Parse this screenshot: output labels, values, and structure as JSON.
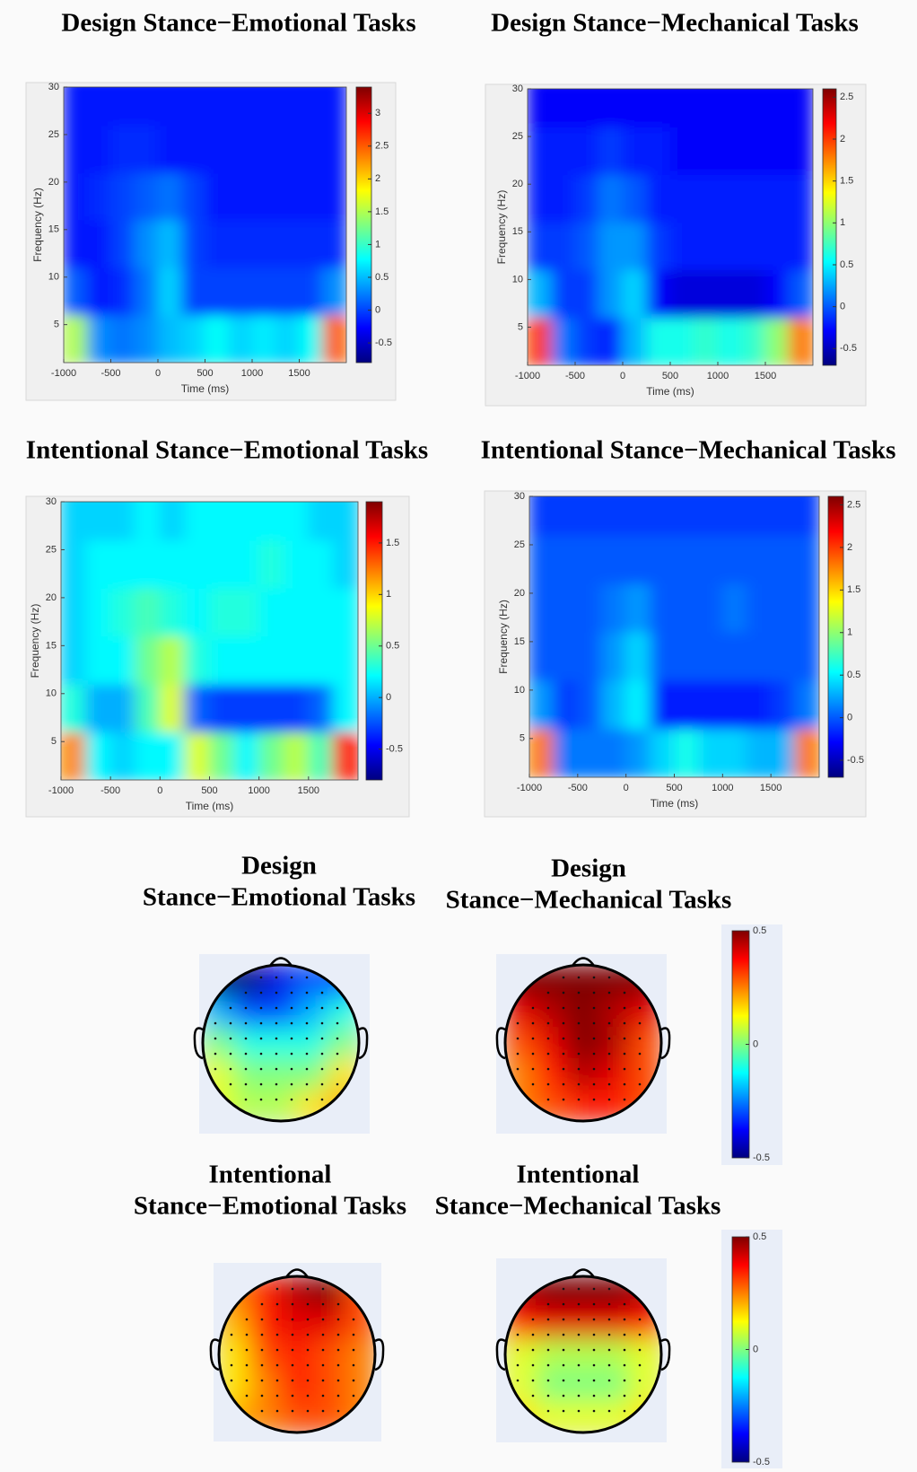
{
  "chart_data": [
    {
      "type": "heatmap",
      "title": "Design Stance−Emotional Tasks",
      "x_label": "Time (ms)",
      "y_label": "Frequency (Hz)",
      "colormap": "jet",
      "x": [
        -875,
        -625,
        -375,
        -125,
        125,
        375,
        625,
        875,
        1125,
        1375,
        1625,
        1875
      ],
      "y": [
        3.5,
        8.5,
        13.5,
        18.5,
        23.5,
        28.5
      ],
      "z": [
        [
          1.5,
          0.3,
          0.2,
          0.3,
          0.5,
          0.6,
          0.8,
          0.6,
          0.7,
          0.6,
          0.8,
          2.5
        ],
        [
          0.1,
          -0.2,
          -0.1,
          0.2,
          0.6,
          0.0,
          0.0,
          0.0,
          0.0,
          0.0,
          0.0,
          0.3
        ],
        [
          -0.2,
          -0.2,
          0.0,
          0.3,
          0.5,
          0.0,
          -0.1,
          -0.1,
          -0.1,
          -0.1,
          -0.1,
          -0.1
        ],
        [
          -0.2,
          -0.1,
          0.0,
          0.1,
          0.2,
          0.0,
          -0.2,
          -0.2,
          -0.2,
          -0.2,
          -0.2,
          -0.2
        ],
        [
          -0.2,
          -0.2,
          -0.1,
          -0.1,
          -0.2,
          -0.2,
          -0.2,
          -0.2,
          -0.2,
          -0.2,
          -0.2,
          -0.2
        ],
        [
          -0.2,
          -0.2,
          -0.2,
          -0.2,
          -0.2,
          -0.2,
          -0.2,
          -0.2,
          -0.2,
          -0.2,
          -0.2,
          -0.2
        ]
      ],
      "xlim": [
        -1000,
        2000
      ],
      "ylim": [
        1,
        30
      ],
      "xticks": [
        -1000,
        -500,
        0,
        500,
        1000,
        1500
      ],
      "yticks": [
        5,
        10,
        15,
        20,
        25,
        30
      ],
      "colorbar": {
        "clim": [
          -0.8,
          3.4
        ],
        "ticks": [
          -0.5,
          0,
          0.5,
          1,
          1.5,
          2,
          2.5,
          3
        ]
      }
    },
    {
      "type": "heatmap",
      "title": "Design Stance−Mechanical Tasks",
      "x_label": "Time (ms)",
      "y_label": "Frequency (Hz)",
      "colormap": "jet",
      "x": [
        -875,
        -625,
        -375,
        -125,
        125,
        375,
        625,
        875,
        1125,
        1375,
        1625,
        1875
      ],
      "y": [
        3.5,
        8.5,
        13.5,
        18.5,
        23.5,
        28.5
      ],
      "z": [
        [
          2.0,
          0.1,
          -0.1,
          -0.2,
          0.3,
          0.6,
          0.6,
          0.7,
          0.6,
          0.7,
          1.0,
          1.8
        ],
        [
          0.3,
          -0.1,
          -0.1,
          0.2,
          0.4,
          -0.3,
          -0.4,
          -0.4,
          -0.4,
          -0.4,
          -0.3,
          0.0
        ],
        [
          -0.1,
          -0.1,
          0.0,
          0.2,
          0.2,
          -0.1,
          -0.2,
          -0.2,
          -0.2,
          -0.2,
          -0.2,
          -0.2
        ],
        [
          -0.2,
          -0.2,
          -0.1,
          0.1,
          0.0,
          -0.2,
          -0.2,
          -0.2,
          -0.2,
          -0.2,
          -0.2,
          -0.2
        ],
        [
          -0.2,
          -0.2,
          -0.2,
          -0.1,
          -0.2,
          -0.2,
          -0.3,
          -0.3,
          -0.3,
          -0.3,
          -0.3,
          -0.3
        ],
        [
          -0.3,
          -0.3,
          -0.3,
          -0.3,
          -0.3,
          -0.3,
          -0.3,
          -0.3,
          -0.3,
          -0.3,
          -0.3,
          -0.3
        ]
      ],
      "xlim": [
        -1000,
        2000
      ],
      "ylim": [
        1,
        30
      ],
      "xticks": [
        -1000,
        -500,
        0,
        500,
        1000,
        1500
      ],
      "yticks": [
        5,
        10,
        15,
        20,
        25,
        30
      ],
      "colorbar": {
        "clim": [
          -0.7,
          2.6
        ],
        "ticks": [
          -0.5,
          0,
          0.5,
          1,
          1.5,
          2,
          2.5
        ]
      }
    },
    {
      "type": "heatmap",
      "title": "Intentional Stance−Emotional Tasks",
      "x_label": "Time (ms)",
      "y_label": "Frequency (Hz)",
      "colormap": "jet",
      "x": [
        -875,
        -625,
        -375,
        -125,
        125,
        375,
        625,
        875,
        1125,
        1375,
        1625,
        1875
      ],
      "y": [
        3.5,
        8.5,
        13.5,
        18.5,
        23.5,
        28.5
      ],
      "z": [
        [
          1.2,
          0.2,
          0.1,
          0.2,
          0.2,
          0.8,
          0.5,
          0.2,
          0.5,
          0.7,
          0.4,
          1.5
        ],
        [
          0.3,
          0.0,
          0.0,
          0.4,
          0.8,
          -0.2,
          -0.3,
          -0.3,
          -0.3,
          -0.3,
          -0.2,
          0.2
        ],
        [
          0.1,
          0.2,
          0.2,
          0.5,
          0.7,
          0.3,
          0.2,
          0.2,
          0.2,
          0.2,
          0.2,
          0.2
        ],
        [
          0.1,
          0.2,
          0.3,
          0.4,
          0.3,
          0.2,
          0.3,
          0.3,
          0.2,
          0.2,
          0.2,
          0.2
        ],
        [
          0.1,
          0.2,
          0.2,
          0.2,
          0.2,
          0.2,
          0.2,
          0.2,
          0.3,
          0.2,
          0.2,
          0.1
        ],
        [
          0.1,
          0.1,
          0.1,
          0.2,
          0.1,
          0.2,
          0.2,
          0.2,
          0.2,
          0.2,
          0.1,
          0.1
        ]
      ],
      "xlim": [
        -1000,
        2000
      ],
      "ylim": [
        1,
        30
      ],
      "xticks": [
        -1000,
        -500,
        0,
        500,
        1000,
        1500
      ],
      "yticks": [
        5,
        10,
        15,
        20,
        25,
        30
      ],
      "colorbar": {
        "clim": [
          -0.8,
          1.9
        ],
        "ticks": [
          -0.5,
          0,
          0.5,
          1,
          1.5
        ]
      }
    },
    {
      "type": "heatmap",
      "title": "Intentional Stance−Mechanical Tasks",
      "x_label": "Time (ms)",
      "y_label": "Frequency (Hz)",
      "colormap": "jet",
      "x": [
        -875,
        -625,
        -375,
        -125,
        125,
        375,
        625,
        875,
        1125,
        1375,
        1625,
        1875
      ],
      "y": [
        3.5,
        8.5,
        13.5,
        18.5,
        23.5,
        28.5
      ],
      "z": [
        [
          1.8,
          0.1,
          0.1,
          0.1,
          0.2,
          0.4,
          0.6,
          0.4,
          0.4,
          0.3,
          0.3,
          1.8
        ],
        [
          0.2,
          -0.1,
          0.0,
          0.3,
          0.5,
          -0.2,
          -0.2,
          -0.2,
          -0.2,
          -0.2,
          -0.1,
          0.1
        ],
        [
          0.0,
          0.0,
          0.0,
          0.2,
          0.4,
          0.0,
          0.0,
          0.0,
          0.0,
          0.0,
          0.0,
          0.0
        ],
        [
          0.0,
          0.0,
          0.0,
          0.1,
          0.2,
          0.0,
          0.0,
          0.0,
          0.1,
          0.0,
          0.0,
          0.0
        ],
        [
          0.0,
          0.0,
          0.0,
          0.0,
          0.0,
          0.0,
          0.0,
          0.0,
          0.0,
          0.0,
          0.0,
          0.0
        ],
        [
          -0.1,
          -0.1,
          -0.1,
          -0.1,
          -0.1,
          -0.1,
          -0.1,
          -0.1,
          -0.1,
          -0.1,
          -0.1,
          -0.1
        ]
      ],
      "xlim": [
        -1000,
        2000
      ],
      "ylim": [
        1,
        30
      ],
      "xticks": [
        -1000,
        -500,
        0,
        500,
        1000,
        1500
      ],
      "yticks": [
        5,
        10,
        15,
        20,
        25,
        30
      ],
      "colorbar": {
        "clim": [
          -0.7,
          2.6
        ],
        "ticks": [
          -0.5,
          0,
          0.5,
          1,
          1.5,
          2,
          2.5
        ]
      }
    },
    {
      "type": "topoplot",
      "title": [
        "Design",
        "Stance−Emotional Tasks"
      ],
      "colormap": "jet",
      "z": [
        [
          -0.5,
          -0.5,
          -0.4,
          -0.3,
          -0.3
        ],
        [
          -0.2,
          -0.3,
          -0.3,
          -0.2,
          -0.1
        ],
        [
          0,
          -0.1,
          -0.1,
          -0.1,
          0
        ],
        [
          0.1,
          0,
          0,
          0,
          0.15
        ],
        [
          0.1,
          0.05,
          0.05,
          0.15,
          0.2
        ]
      ]
    },
    {
      "type": "topoplot",
      "title": [
        "Design",
        "Stance−Mechanical Tasks"
      ],
      "colormap": "jet",
      "z": [
        [
          0.5,
          0.5,
          0.5,
          0.5,
          0.5
        ],
        [
          0.4,
          0.45,
          0.5,
          0.45,
          0.4
        ],
        [
          0.3,
          0.4,
          0.5,
          0.45,
          0.3
        ],
        [
          0.25,
          0.35,
          0.45,
          0.4,
          0.3
        ],
        [
          0.25,
          0.3,
          0.35,
          0.35,
          0.3
        ]
      ]
    },
    {
      "type": "topoplot",
      "title": [
        "Intentional",
        "Stance−Emotional Tasks"
      ],
      "colormap": "jet",
      "z": [
        [
          0.25,
          0.35,
          0.45,
          0.5,
          0.3
        ],
        [
          0.2,
          0.35,
          0.4,
          0.4,
          0.3
        ],
        [
          0.15,
          0.3,
          0.35,
          0.3,
          0.25
        ],
        [
          0.15,
          0.25,
          0.35,
          0.3,
          0.25
        ],
        [
          0.2,
          0.25,
          0.3,
          0.3,
          0.25
        ]
      ]
    },
    {
      "type": "topoplot",
      "title": [
        "Intentional",
        "Stance−Mechanical Tasks"
      ],
      "colormap": "jet",
      "z": [
        [
          0.45,
          0.5,
          0.5,
          0.5,
          0.45
        ],
        [
          0.35,
          0.4,
          0.4,
          0.4,
          0.35
        ],
        [
          0.1,
          0.05,
          0.05,
          0.05,
          0.1
        ],
        [
          0.1,
          0,
          0,
          0,
          0.1
        ],
        [
          0.15,
          0.1,
          0.1,
          0.1,
          0.15
        ]
      ]
    },
    {
      "type": "colorbar",
      "colormap": "jet",
      "clim": [
        -0.5,
        0.5
      ],
      "ticks": [
        -0.5,
        0,
        0.5
      ]
    },
    {
      "type": "colorbar",
      "colormap": "jet",
      "clim": [
        -0.5,
        0.5
      ],
      "ticks": [
        -0.5,
        0,
        0.5
      ]
    }
  ]
}
